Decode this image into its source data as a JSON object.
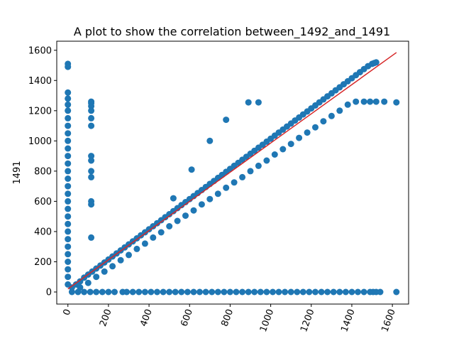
{
  "chart_data": {
    "type": "scatter",
    "title": "A plot to show the correlation between_1492_and_1491",
    "xlabel": "",
    "ylabel": "1491",
    "xlim": [
      -55,
      1680
    ],
    "ylim": [
      -80,
      1660
    ],
    "xticks": [
      "0",
      "200",
      "400",
      "600",
      "800",
      "1000",
      "1200",
      "1400",
      "1600"
    ],
    "yticks": [
      "0",
      "200",
      "400",
      "600",
      "800",
      "1000",
      "1200",
      "1400",
      "1600"
    ],
    "xtick_values": [
      0,
      200,
      400,
      600,
      800,
      1000,
      1200,
      1400,
      1600
    ],
    "ytick_values": [
      0,
      200,
      400,
      600,
      800,
      1000,
      1200,
      1400,
      1600
    ],
    "xtick_rotation": 70,
    "grid": false,
    "marker_color": "#1f77b4",
    "fit_line_color": "#d62728",
    "fit_line": {
      "x": [
        0,
        1620
      ],
      "y": [
        20,
        1585
      ]
    },
    "series": [
      {
        "name": "",
        "x": [
          0,
          0,
          0,
          0,
          0,
          0,
          0,
          0,
          0,
          0,
          0,
          0,
          0,
          0,
          0,
          0,
          0,
          0,
          0,
          0,
          0,
          0,
          0,
          0,
          0,
          0,
          0,
          0,
          0,
          115,
          115,
          115,
          115,
          115,
          115,
          115,
          115,
          115,
          115,
          115,
          115,
          115,
          20,
          40,
          60,
          80,
          100,
          120,
          140,
          160,
          180,
          200,
          220,
          240,
          260,
          280,
          300,
          320,
          340,
          360,
          380,
          400,
          420,
          440,
          460,
          480,
          500,
          520,
          540,
          560,
          580,
          600,
          620,
          640,
          660,
          680,
          700,
          720,
          740,
          760,
          780,
          800,
          820,
          840,
          860,
          880,
          900,
          920,
          940,
          960,
          980,
          1000,
          1020,
          1040,
          1060,
          1080,
          1100,
          1120,
          1140,
          1160,
          1180,
          1200,
          1220,
          1240,
          1260,
          1280,
          1300,
          1320,
          1340,
          1360,
          1380,
          1400,
          1420,
          1440,
          1460,
          1480,
          1500,
          1510,
          1520,
          60,
          100,
          140,
          180,
          220,
          260,
          300,
          340,
          380,
          420,
          460,
          500,
          540,
          580,
          620,
          660,
          700,
          740,
          780,
          820,
          860,
          900,
          940,
          980,
          1020,
          1060,
          1100,
          1140,
          1180,
          1220,
          1260,
          1300,
          1340,
          1380,
          1420,
          1460,
          1490,
          1520,
          1560,
          1620,
          20,
          50,
          80,
          110,
          140,
          170,
          200,
          230,
          270,
          290,
          320,
          350,
          380,
          410,
          440,
          470,
          500,
          530,
          560,
          590,
          620,
          650,
          680,
          710,
          740,
          770,
          800,
          830,
          860,
          890,
          920,
          950,
          980,
          1010,
          1040,
          1070,
          1100,
          1130,
          1160,
          1190,
          1220,
          1250,
          1280,
          1310,
          1340,
          1370,
          1400,
          1430,
          1460,
          1490,
          1505,
          1520,
          1540,
          1620,
          520,
          610,
          700,
          780,
          890,
          940
        ],
        "y": [
          1510,
          1490,
          1320,
          1280,
          1240,
          1200,
          1150,
          1100,
          1050,
          1000,
          950,
          900,
          850,
          800,
          750,
          700,
          650,
          600,
          550,
          500,
          450,
          400,
          350,
          300,
          250,
          200,
          150,
          100,
          50,
          1260,
          1250,
          1230,
          1200,
          1150,
          1100,
          900,
          870,
          800,
          760,
          600,
          580,
          360,
          30,
          50,
          70,
          95,
          115,
          135,
          155,
          175,
          195,
          215,
          235,
          255,
          275,
          295,
          315,
          335,
          355,
          375,
          395,
          415,
          435,
          455,
          475,
          495,
          515,
          535,
          555,
          575,
          595,
          615,
          635,
          655,
          675,
          695,
          715,
          735,
          755,
          775,
          795,
          815,
          835,
          855,
          875,
          895,
          915,
          935,
          955,
          975,
          995,
          1015,
          1035,
          1055,
          1075,
          1095,
          1115,
          1135,
          1155,
          1175,
          1195,
          1215,
          1235,
          1255,
          1275,
          1295,
          1315,
          1335,
          1355,
          1375,
          1395,
          1415,
          1435,
          1455,
          1475,
          1495,
          1510,
          1515,
          1520,
          30,
          60,
          100,
          135,
          170,
          210,
          245,
          285,
          320,
          360,
          395,
          435,
          470,
          505,
          540,
          580,
          615,
          650,
          690,
          725,
          760,
          800,
          835,
          870,
          910,
          945,
          980,
          1020,
          1055,
          1090,
          1130,
          1165,
          1200,
          1240,
          1260,
          1260,
          1260,
          1260,
          1260,
          1255,
          0,
          0,
          0,
          0,
          0,
          0,
          0,
          0,
          0,
          0,
          0,
          0,
          0,
          0,
          0,
          0,
          0,
          0,
          0,
          0,
          0,
          0,
          0,
          0,
          0,
          0,
          0,
          0,
          0,
          0,
          0,
          0,
          0,
          0,
          0,
          0,
          0,
          0,
          0,
          0,
          0,
          0,
          0,
          0,
          0,
          0,
          0,
          0,
          0,
          0,
          0,
          0,
          0,
          0,
          620,
          810,
          1000,
          1140,
          1255,
          1255
        ]
      }
    ]
  }
}
